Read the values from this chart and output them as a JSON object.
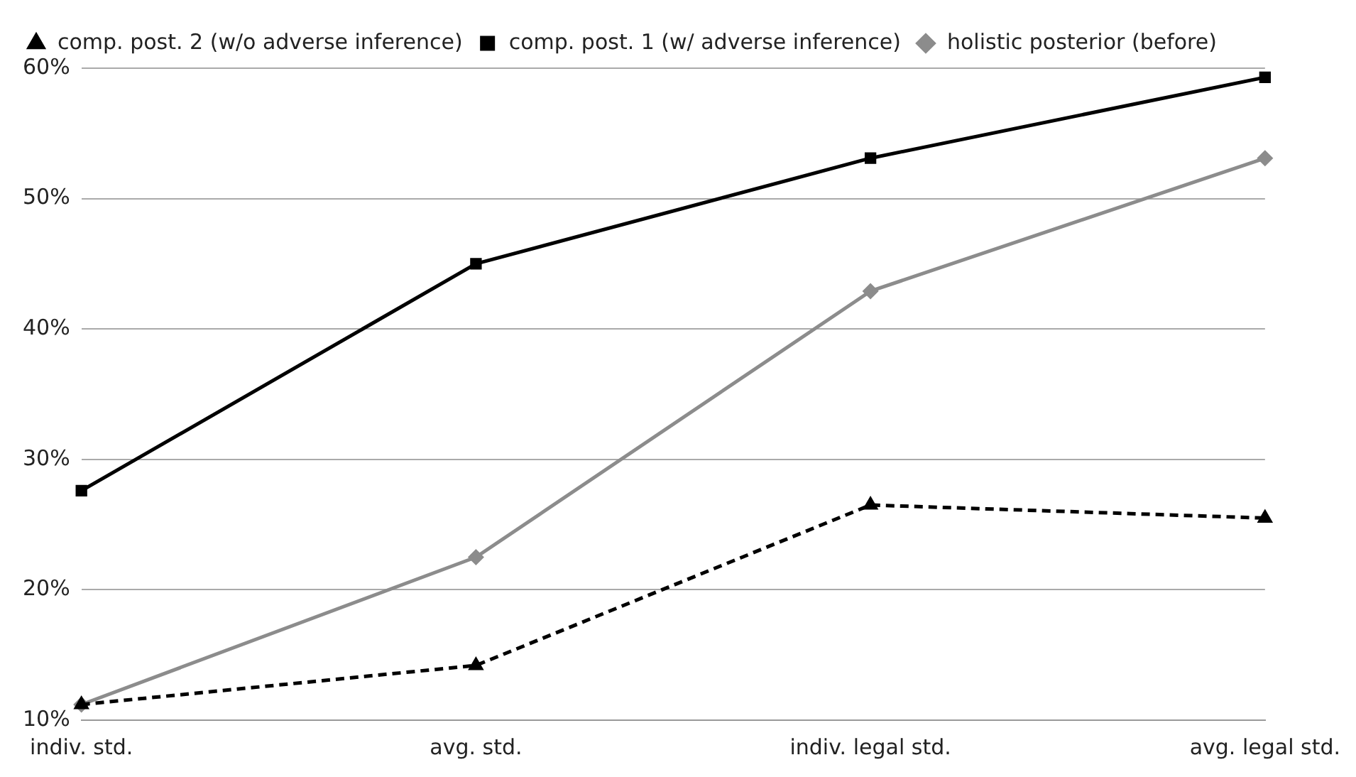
{
  "chart_data": {
    "type": "line",
    "categories": [
      "indiv. std.",
      "avg. std.",
      "indiv. legal std.",
      "avg. legal std."
    ],
    "series": [
      {
        "name": "holistic posterior (before)",
        "color": "#8c8c8c",
        "marker": "diamond",
        "line_style": "solid",
        "values": [
          11.2,
          22.5,
          42.9,
          53.1
        ]
      },
      {
        "name": "comp. post. 1 (w/ adverse inference)",
        "color": "#000000",
        "marker": "square",
        "line_style": "solid",
        "values": [
          27.6,
          45.0,
          53.1,
          59.3
        ]
      },
      {
        "name": "comp. post. 2 (w/o adverse inference)",
        "color": "#000000",
        "marker": "triangle",
        "line_style": "dashed",
        "values": [
          11.2,
          14.2,
          26.5,
          25.5
        ]
      }
    ],
    "ylim": [
      10,
      60
    ],
    "yticks": [
      {
        "value": 10,
        "label": "10%"
      },
      {
        "value": 20,
        "label": "20%"
      },
      {
        "value": 30,
        "label": "30%"
      },
      {
        "value": 40,
        "label": "40%"
      },
      {
        "value": 50,
        "label": "50%"
      },
      {
        "value": 60,
        "label": "60%"
      }
    ],
    "grid": "y",
    "legend": "top left"
  }
}
